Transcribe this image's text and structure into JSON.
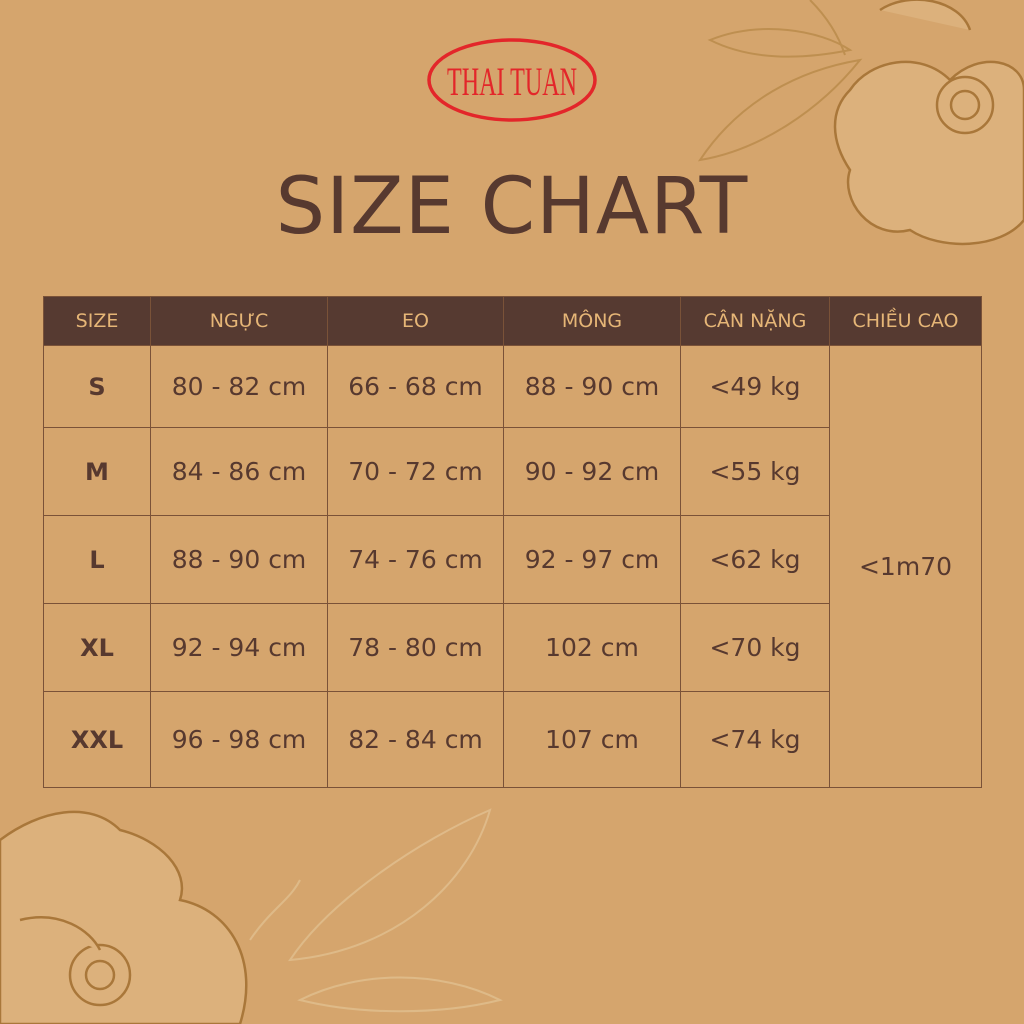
{
  "logo": {
    "text": "THAI TUAN",
    "color": "#e3262a"
  },
  "title": "SIZE CHART",
  "colors": {
    "background": "#d5a56d",
    "header": "#563a31",
    "header_text": "#e6b677",
    "body_text": "#57392f"
  },
  "table": {
    "headers": [
      "SIZE",
      "NGỰC",
      "EO",
      "MÔNG",
      "CÂN NẶNG",
      "CHIỀU CAO"
    ],
    "rows": [
      {
        "size": "S",
        "nguc": "80 - 82 cm",
        "eo": "66 - 68 cm",
        "mong": "88 - 90 cm",
        "can_nang": "<49 kg"
      },
      {
        "size": "M",
        "nguc": "84 - 86 cm",
        "eo": "70 - 72 cm",
        "mong": "90 - 92 cm",
        "can_nang": "<55 kg"
      },
      {
        "size": "L",
        "nguc": "88 - 90 cm",
        "eo": "74 - 76 cm",
        "mong": "92 - 97 cm",
        "can_nang": "<62 kg"
      },
      {
        "size": "XL",
        "nguc": "92 - 94 cm",
        "eo": "78 - 80 cm",
        "mong": "102 cm",
        "can_nang": "<70 kg"
      },
      {
        "size": "XXL",
        "nguc": "96 - 98 cm",
        "eo": "82 - 84 cm",
        "mong": "107 cm",
        "can_nang": "<74 kg"
      }
    ],
    "chieu_cao": "<1m70"
  }
}
